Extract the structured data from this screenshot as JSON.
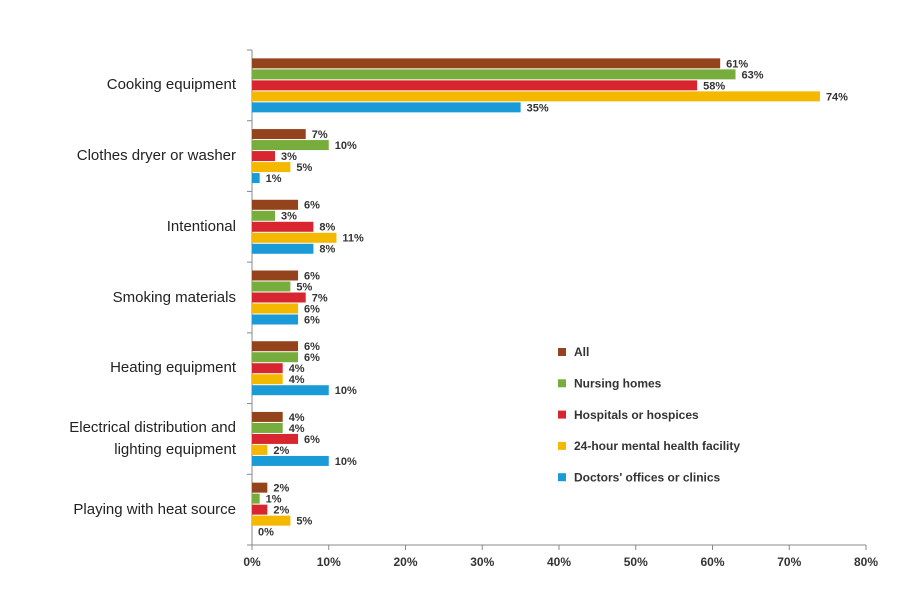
{
  "chart_data": {
    "type": "bar",
    "orientation": "horizontal",
    "categories": [
      "Cooking equipment",
      "Clothes dryer or washer",
      "Intentional",
      "Smoking materials",
      "Heating equipment",
      "Electrical distribution and lighting equipment",
      "Playing with heat source"
    ],
    "series": [
      {
        "name": "All",
        "color": "#94441c",
        "values": [
          61,
          7,
          6,
          6,
          6,
          4,
          2
        ],
        "value_labels": [
          "61%",
          "7%",
          "6%",
          "6%",
          "6%",
          "4%",
          "2%"
        ]
      },
      {
        "name": "Nursing homes",
        "color": "#77ad3c",
        "values": [
          63,
          10,
          3,
          5,
          6,
          4,
          1
        ],
        "value_labels": [
          "63%",
          "10%",
          "3%",
          "5%",
          "6%",
          "4%",
          "1%"
        ]
      },
      {
        "name": "Hospitals or hospices",
        "color": "#d7262f",
        "values": [
          58,
          3,
          8,
          7,
          4,
          6,
          2
        ],
        "value_labels": [
          "58%",
          "3%",
          "8%",
          "7%",
          "4%",
          "6%",
          "2%"
        ]
      },
      {
        "name": "24-hour mental health facility",
        "color": "#f5b800",
        "values": [
          74,
          5,
          11,
          6,
          4,
          2,
          5
        ],
        "value_labels": [
          "74%",
          "5%",
          "11%",
          "6%",
          "4%",
          "2%",
          "5%"
        ]
      },
      {
        "name": "Doctors' offices or clinics",
        "color": "#1a9ad6",
        "values": [
          35,
          1,
          8,
          6,
          10,
          10,
          0
        ],
        "value_labels": [
          "35%",
          "1%",
          "8%",
          "6%",
          "10%",
          "10%",
          "0%"
        ]
      }
    ],
    "xlim": [
      0,
      80
    ],
    "xticks": [
      {
        "value": 0,
        "label": "0%"
      },
      {
        "value": 10,
        "label": "10%"
      },
      {
        "value": 20,
        "label": "20%"
      },
      {
        "value": 30,
        "label": "30%"
      },
      {
        "value": 40,
        "label": "40%"
      },
      {
        "value": 50,
        "label": "50%"
      },
      {
        "value": 60,
        "label": "60%"
      },
      {
        "value": 70,
        "label": "70%"
      },
      {
        "value": 80,
        "label": "80%"
      }
    ],
    "grid": false,
    "legend": "right"
  }
}
